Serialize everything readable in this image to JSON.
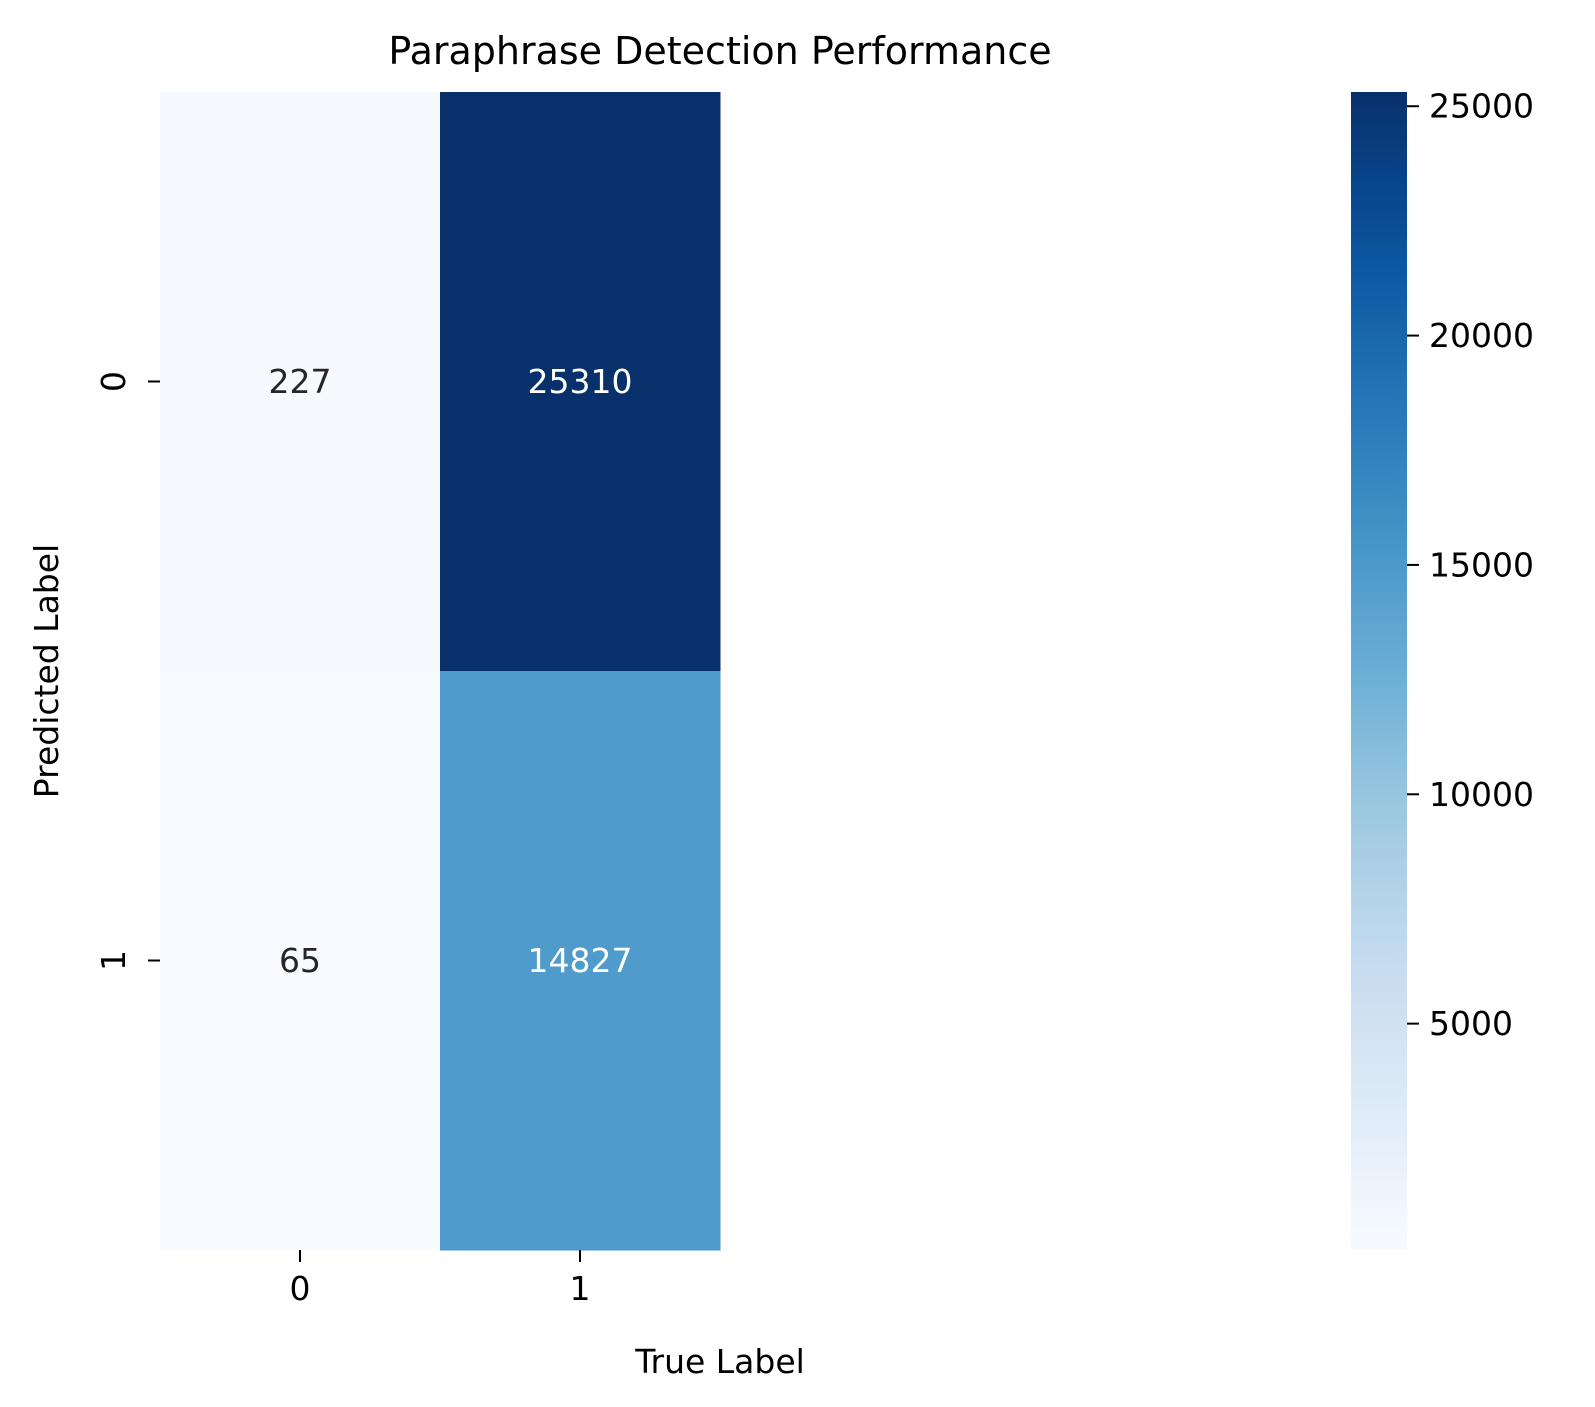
{
  "chart_data": {
    "type": "heatmap",
    "title": "Paraphrase Detection Performance",
    "xlabel": "True Label",
    "ylabel": "Predicted Label",
    "x_categories": [
      "0",
      "1"
    ],
    "y_categories": [
      "0",
      "1"
    ],
    "values": [
      [
        227,
        25310
      ],
      [
        65,
        14827
      ]
    ],
    "colormap": "Blues",
    "color_range": [
      65,
      25310
    ],
    "colorbar": {
      "ticks": [
        5000,
        10000,
        15000,
        20000,
        25000
      ],
      "tick_labels": [
        "5000",
        "10000",
        "15000",
        "20000",
        "25000"
      ],
      "placement": "right"
    },
    "colors": {
      "low": "#f7fbff",
      "high": "#08306b",
      "dark_text": "#262626",
      "light_text": "#ffffff"
    },
    "grid": false,
    "legend": "none"
  }
}
